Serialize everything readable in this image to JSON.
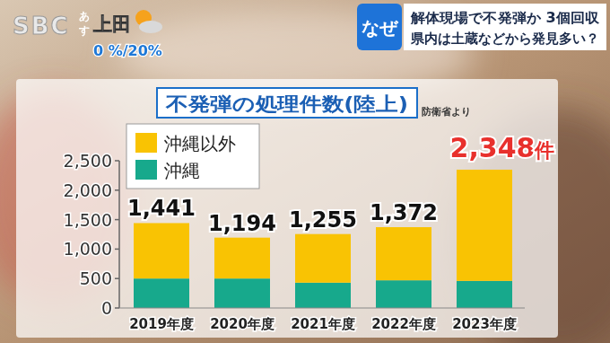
{
  "header": {
    "logo": "SBC",
    "tomorrow": "あす",
    "city": "上田",
    "rain": "0 %/20%",
    "tag": "なぜ",
    "headline": [
      "解体現場で不発弾か 3個回収",
      "県内は土蔵などから発見多い？"
    ]
  },
  "chart_data": {
    "type": "bar",
    "stacked": true,
    "title": "不発弾の処理件数(陸上)",
    "source": "防衛省より",
    "categories": [
      "2019年度",
      "2020年度",
      "2021年度",
      "2022年度",
      "2023年度"
    ],
    "series": [
      {
        "name": "沖縄",
        "color": "#17a98c",
        "values": [
          500,
          500,
          430,
          470,
          460
        ]
      },
      {
        "name": "沖縄以外",
        "color": "#f9c303",
        "values": [
          941,
          694,
          825,
          902,
          1888
        ]
      }
    ],
    "totals": [
      1441,
      1194,
      1255,
      1372,
      2348
    ],
    "total_labels": [
      "1,441",
      "1,194",
      "1,255",
      "1,372",
      "2,348件"
    ],
    "ylim": [
      0,
      2500
    ],
    "yticks": [
      0,
      500,
      {
        "value": 1000,
        "label": "1,000"
      },
      {
        "value": 1500,
        "label": "1,500"
      },
      {
        "value": 2000,
        "label": "2,000"
      },
      {
        "value": 2500,
        "label": "2,500"
      }
    ],
    "grid": false,
    "legend": "upper left"
  }
}
